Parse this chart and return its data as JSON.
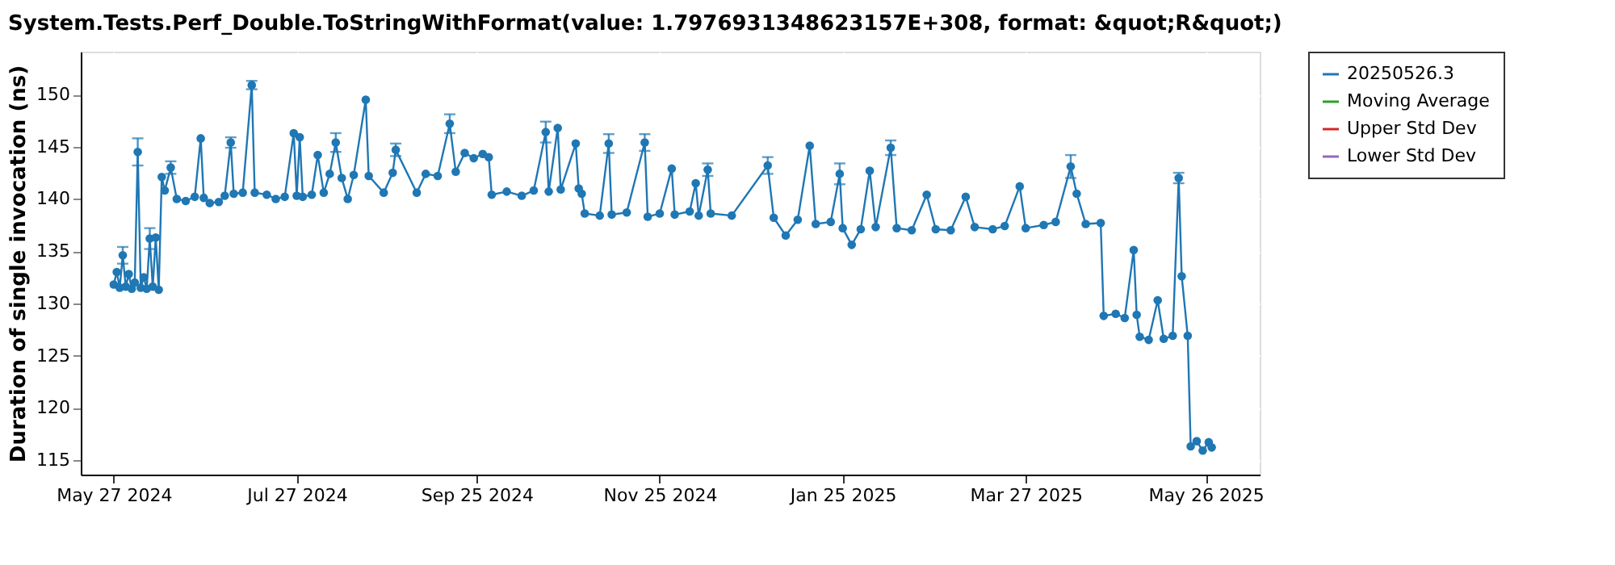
{
  "chart_data": {
    "type": "line",
    "title": "System.Tests.Perf_Double.ToStringWithFormat(value: 1.7976931348623157E+308, format: &quot;R&quot;)",
    "ylabel": "Duration of single invocation (ns)",
    "xlim": [
      "2024-05-16",
      "2025-06-13"
    ],
    "xticks": [
      {
        "value": "2024-05-27",
        "label": "May 27 2024"
      },
      {
        "value": "2024-07-27",
        "label": "Jul 27 2024"
      },
      {
        "value": "2024-09-25",
        "label": "Sep 25 2024"
      },
      {
        "value": "2024-11-25",
        "label": "Nov 25 2024"
      },
      {
        "value": "2025-01-25",
        "label": "Jan 25 2025"
      },
      {
        "value": "2025-03-27",
        "label": "Mar 27 2025"
      },
      {
        "value": "2025-05-26",
        "label": "May 26 2025"
      }
    ],
    "ylim": [
      113.6,
      154.1
    ],
    "yticks": [
      115,
      120,
      125,
      130,
      135,
      140,
      145,
      150
    ],
    "grid": true,
    "legend": "right",
    "marker": "circle",
    "line_style": "solid",
    "series": [
      {
        "name": "20250526.3",
        "color": "#1f77b4",
        "x": [
          "2024-05-27",
          "2024-05-28",
          "2024-05-29",
          "2024-05-30",
          "2024-05-31",
          "2024-06-01",
          "2024-06-02",
          "2024-06-03",
          "2024-06-04",
          "2024-06-05",
          "2024-06-06",
          "2024-06-07",
          "2024-06-08",
          "2024-06-09",
          "2024-06-10",
          "2024-06-11",
          "2024-06-12",
          "2024-06-13",
          "2024-06-15",
          "2024-06-17",
          "2024-06-20",
          "2024-06-23",
          "2024-06-25",
          "2024-06-26",
          "2024-06-28",
          "2024-07-01",
          "2024-07-03",
          "2024-07-05",
          "2024-07-06",
          "2024-07-09",
          "2024-07-12",
          "2024-07-13",
          "2024-07-17",
          "2024-07-20",
          "2024-07-23",
          "2024-07-26",
          "2024-07-27",
          "2024-07-28",
          "2024-07-29",
          "2024-08-01",
          "2024-08-03",
          "2024-08-05",
          "2024-08-07",
          "2024-08-09",
          "2024-08-11",
          "2024-08-13",
          "2024-08-15",
          "2024-08-19",
          "2024-08-20",
          "2024-08-25",
          "2024-08-28",
          "2024-08-29",
          "2024-09-05",
          "2024-09-08",
          "2024-09-12",
          "2024-09-16",
          "2024-09-18",
          "2024-09-21",
          "2024-09-24",
          "2024-09-27",
          "2024-09-29",
          "2024-09-30",
          "2024-10-05",
          "2024-10-10",
          "2024-10-14",
          "2024-10-18",
          "2024-10-19",
          "2024-10-22",
          "2024-10-23",
          "2024-10-28",
          "2024-10-29",
          "2024-10-30",
          "2024-10-31",
          "2024-11-05",
          "2024-11-08",
          "2024-11-09",
          "2024-11-14",
          "2024-11-20",
          "2024-11-21",
          "2024-11-25",
          "2024-11-29",
          "2024-11-30",
          "2024-12-05",
          "2024-12-07",
          "2024-12-08",
          "2024-12-11",
          "2024-12-12",
          "2024-12-19",
          "2024-12-31",
          "2025-01-02",
          "2025-01-06",
          "2025-01-10",
          "2025-01-14",
          "2025-01-16",
          "2025-01-21",
          "2025-01-24",
          "2025-01-25",
          "2025-01-28",
          "2025-01-31",
          "2025-02-03",
          "2025-02-05",
          "2025-02-10",
          "2025-02-12",
          "2025-02-17",
          "2025-02-22",
          "2025-02-25",
          "2025-03-02",
          "2025-03-07",
          "2025-03-10",
          "2025-03-16",
          "2025-03-20",
          "2025-03-25",
          "2025-03-27",
          "2025-04-02",
          "2025-04-06",
          "2025-04-11",
          "2025-04-13",
          "2025-04-16",
          "2025-04-21",
          "2025-04-22",
          "2025-04-26",
          "2025-04-29",
          "2025-05-02",
          "2025-05-03",
          "2025-05-04",
          "2025-05-07",
          "2025-05-10",
          "2025-05-12",
          "2025-05-15",
          "2025-05-17",
          "2025-05-18",
          "2025-05-20",
          "2025-05-21",
          "2025-05-23",
          "2025-05-25",
          "2025-05-27",
          "2025-05-28"
        ],
        "values": [
          131.8,
          133.0,
          131.5,
          134.6,
          131.6,
          132.8,
          131.4,
          132.0,
          144.5,
          131.5,
          132.5,
          131.4,
          136.2,
          131.6,
          136.3,
          131.3,
          142.1,
          140.8,
          143.0,
          140.0,
          139.8,
          140.2,
          145.8,
          140.1,
          139.6,
          139.7,
          140.3,
          145.4,
          140.5,
          140.6,
          150.9,
          140.6,
          140.4,
          140.0,
          140.2,
          146.3,
          140.3,
          145.9,
          140.2,
          140.4,
          144.2,
          140.6,
          142.4,
          145.4,
          142.0,
          140.0,
          142.3,
          149.5,
          142.2,
          140.6,
          142.5,
          144.7,
          140.6,
          142.4,
          142.2,
          147.2,
          142.6,
          144.4,
          143.9,
          144.3,
          144.0,
          140.4,
          140.7,
          140.3,
          140.8,
          146.4,
          140.7,
          146.8,
          140.9,
          145.3,
          141.0,
          140.5,
          138.6,
          138.4,
          145.3,
          138.5,
          138.7,
          145.4,
          138.3,
          138.6,
          142.9,
          138.5,
          138.8,
          141.5,
          138.4,
          142.8,
          138.6,
          138.4,
          143.2,
          138.2,
          136.5,
          138.0,
          145.1,
          137.6,
          137.8,
          142.4,
          137.2,
          135.6,
          137.1,
          142.7,
          137.3,
          144.9,
          137.2,
          137.0,
          140.4,
          137.1,
          137.0,
          140.2,
          137.3,
          137.1,
          137.4,
          141.2,
          137.2,
          137.5,
          137.8,
          143.1,
          140.5,
          137.6,
          137.7,
          128.8,
          129.0,
          128.6,
          135.1,
          128.9,
          126.8,
          126.5,
          130.3,
          126.6,
          126.9,
          142.0,
          132.6,
          126.9,
          116.3,
          116.8,
          115.9,
          116.7,
          116.2
        ],
        "errors": [
          null,
          null,
          null,
          0.8,
          null,
          null,
          null,
          null,
          1.3,
          null,
          null,
          null,
          1.0,
          null,
          null,
          null,
          null,
          null,
          0.6,
          null,
          null,
          null,
          null,
          null,
          null,
          null,
          null,
          0.5,
          null,
          null,
          0.4,
          null,
          null,
          null,
          null,
          null,
          null,
          null,
          null,
          null,
          null,
          null,
          null,
          0.9,
          null,
          null,
          null,
          null,
          null,
          null,
          null,
          0.6,
          null,
          null,
          null,
          0.9,
          null,
          null,
          null,
          null,
          null,
          null,
          null,
          null,
          null,
          1.0,
          null,
          null,
          null,
          null,
          null,
          null,
          null,
          null,
          0.9,
          null,
          null,
          0.8,
          null,
          null,
          null,
          null,
          null,
          null,
          null,
          0.6,
          null,
          null,
          0.8,
          null,
          null,
          null,
          null,
          null,
          null,
          1.0,
          null,
          null,
          null,
          null,
          null,
          0.7,
          null,
          null,
          null,
          null,
          null,
          null,
          null,
          null,
          null,
          null,
          null,
          null,
          null,
          1.1,
          null,
          null,
          null,
          null,
          null,
          null,
          null,
          null,
          null,
          null,
          null,
          null,
          null,
          0.5,
          null,
          null,
          null,
          null,
          null,
          null,
          null
        ]
      },
      {
        "name": "Moving Average",
        "color": "#2ca02c"
      },
      {
        "name": "Upper Std Dev",
        "color": "#d62728"
      },
      {
        "name": "Lower Std Dev",
        "color": "#9467bd"
      }
    ]
  }
}
